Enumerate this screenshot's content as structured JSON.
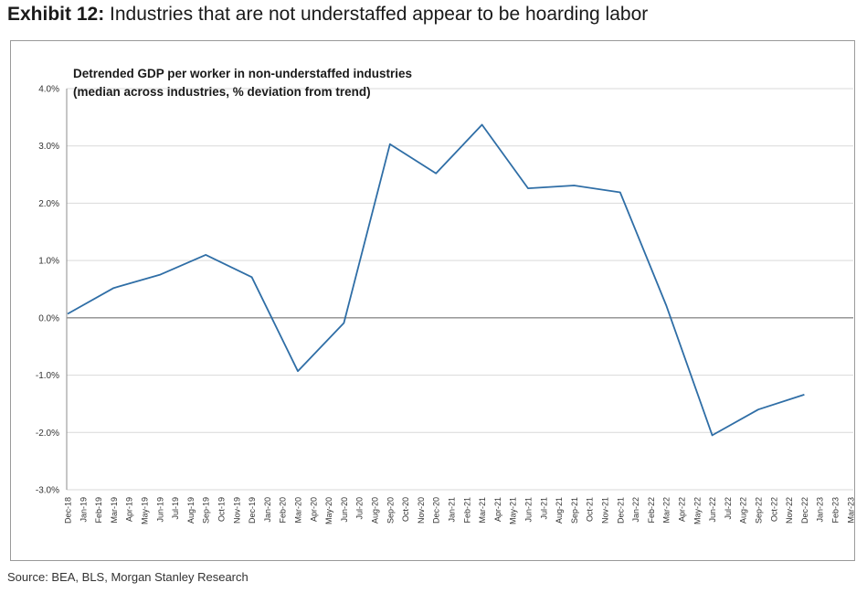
{
  "header": {
    "exhibit_label": "Exhibit 12:",
    "title": "Industries that are not understaffed appear to be hoarding labor"
  },
  "footer": {
    "source": "Source: BEA, BLS, Morgan Stanley Research"
  },
  "colors": {
    "line": "#2f6ea6",
    "grid": "#d9d9d9",
    "zero_line": "#8c8c8c"
  },
  "chart_data": {
    "type": "line",
    "title": "Detrended GDP per worker in non-understaffed industries",
    "subtitle": "(median across industries, % deviation from trend)",
    "xlabel": "",
    "ylabel": "",
    "ylim": [
      -3.0,
      4.0
    ],
    "yticks": [
      "4.0%",
      "3.0%",
      "2.0%",
      "1.0%",
      "0.0%",
      "-1.0%",
      "-2.0%",
      "-3.0%"
    ],
    "ytick_values": [
      4,
      3,
      2,
      1,
      0,
      -1,
      -2,
      -3
    ],
    "grid": true,
    "legend": "none",
    "x": [
      "Dec-18",
      "Jan-19",
      "Feb-19",
      "Mar-19",
      "Apr-19",
      "May-19",
      "Jun-19",
      "Jul-19",
      "Aug-19",
      "Sep-19",
      "Oct-19",
      "Nov-19",
      "Dec-19",
      "Jan-20",
      "Feb-20",
      "Mar-20",
      "Apr-20",
      "May-20",
      "Jun-20",
      "Jul-20",
      "Aug-20",
      "Sep-20",
      "Oct-20",
      "Nov-20",
      "Dec-20",
      "Jan-21",
      "Feb-21",
      "Mar-21",
      "Apr-21",
      "May-21",
      "Jun-21",
      "Jul-21",
      "Aug-21",
      "Sep-21",
      "Oct-21",
      "Nov-21",
      "Dec-21",
      "Jan-22",
      "Feb-22",
      "Mar-22",
      "Apr-22",
      "May-22",
      "Jun-22",
      "Jul-22",
      "Aug-22",
      "Sep-22",
      "Oct-22",
      "Nov-22",
      "Dec-22",
      "Jan-23",
      "Feb-23",
      "Mar-23"
    ],
    "series": [
      {
        "points": [
          {
            "x": "Dec-18",
            "y": 0.07
          },
          {
            "x": "Mar-19",
            "y": 0.52
          },
          {
            "x": "Jun-19",
            "y": 0.75
          },
          {
            "x": "Sep-19",
            "y": 1.1
          },
          {
            "x": "Dec-19",
            "y": 0.71
          },
          {
            "x": "Mar-20",
            "y": -0.93
          },
          {
            "x": "Jun-20",
            "y": -0.09
          },
          {
            "x": "Sep-20",
            "y": 3.03
          },
          {
            "x": "Dec-20",
            "y": 2.52
          },
          {
            "x": "Mar-21",
            "y": 3.37
          },
          {
            "x": "Jun-21",
            "y": 2.26
          },
          {
            "x": "Sep-21",
            "y": 2.31
          },
          {
            "x": "Dec-21",
            "y": 2.19
          },
          {
            "x": "Mar-22",
            "y": 0.22
          },
          {
            "x": "Jun-22",
            "y": -2.05
          },
          {
            "x": "Sep-22",
            "y": -1.6
          },
          {
            "x": "Dec-22",
            "y": -1.34
          }
        ]
      }
    ]
  }
}
